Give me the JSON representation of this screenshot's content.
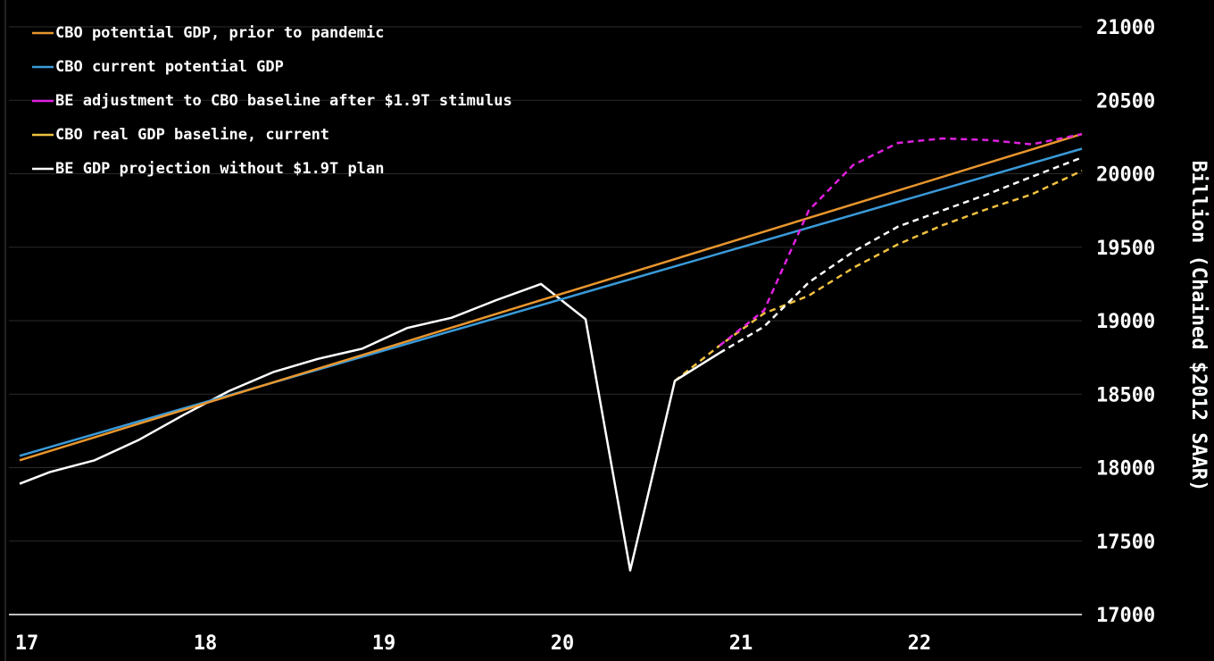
{
  "chart_data": {
    "type": "line",
    "title": "",
    "xlabel": "",
    "ylabel": "Billion (Chained $2012 SAAR)",
    "xlim": [
      2017.0,
      2022.95
    ],
    "ylim": [
      17000,
      21000
    ],
    "x_ticks": [
      {
        "value": 2017,
        "label": "17"
      },
      {
        "value": 2018,
        "label": "18"
      },
      {
        "value": 2019,
        "label": "19"
      },
      {
        "value": 2020,
        "label": "20"
      },
      {
        "value": 2021,
        "label": "21"
      },
      {
        "value": 2022,
        "label": "22"
      }
    ],
    "y_ticks": [
      17000,
      17500,
      18000,
      18500,
      19000,
      19500,
      20000,
      20500,
      21000
    ],
    "grid": "horizontal",
    "legend_position": "top-left",
    "series": [
      {
        "name": "CBO potential GDP, prior to pandemic",
        "color": "#e8962e",
        "dashed": false,
        "points": [
          [
            2017.0,
            18050
          ],
          [
            2022.95,
            20270
          ]
        ]
      },
      {
        "name": "CBO current potential GDP",
        "color": "#3a9ad9",
        "dashed": false,
        "points": [
          [
            2017.0,
            18080
          ],
          [
            2022.95,
            20170
          ]
        ]
      },
      {
        "name": "BE adjustment to CBO baseline after $1.9T stimulus",
        "color": "#e020e0",
        "dashed": true,
        "points": [
          [
            2020.92,
            18830
          ],
          [
            2021.17,
            19070
          ],
          [
            2021.42,
            19750
          ],
          [
            2021.67,
            20060
          ],
          [
            2021.92,
            20210
          ],
          [
            2022.17,
            20240
          ],
          [
            2022.42,
            20230
          ],
          [
            2022.67,
            20200
          ],
          [
            2022.95,
            20270
          ]
        ]
      },
      {
        "name": "CBO real GDP baseline, current",
        "color": "#f0c040",
        "dashed": true,
        "solid_until": 2020.67,
        "points": [
          [
            2020.67,
            18590
          ],
          [
            2020.92,
            18830
          ],
          [
            2021.17,
            19050
          ],
          [
            2021.42,
            19170
          ],
          [
            2021.67,
            19360
          ],
          [
            2021.92,
            19520
          ],
          [
            2022.17,
            19650
          ],
          [
            2022.42,
            19760
          ],
          [
            2022.67,
            19860
          ],
          [
            2022.95,
            20020
          ]
        ]
      },
      {
        "name": "BE GDP projection without $1.9T plan",
        "color": "#ffffff",
        "dashed": false,
        "dashed_from": 2020.92,
        "points": [
          [
            2017.0,
            17890
          ],
          [
            2017.17,
            17970
          ],
          [
            2017.42,
            18050
          ],
          [
            2017.67,
            18190
          ],
          [
            2017.92,
            18360
          ],
          [
            2018.17,
            18520
          ],
          [
            2018.42,
            18650
          ],
          [
            2018.67,
            18740
          ],
          [
            2018.92,
            18810
          ],
          [
            2019.17,
            18950
          ],
          [
            2019.42,
            19020
          ],
          [
            2019.67,
            19140
          ],
          [
            2019.92,
            19250
          ],
          [
            2020.17,
            19010
          ],
          [
            2020.42,
            17300
          ],
          [
            2020.67,
            18590
          ],
          [
            2020.92,
            18780
          ],
          [
            2021.17,
            18960
          ],
          [
            2021.42,
            19260
          ],
          [
            2021.67,
            19470
          ],
          [
            2021.92,
            19640
          ],
          [
            2022.17,
            19750
          ],
          [
            2022.42,
            19860
          ],
          [
            2022.67,
            19980
          ],
          [
            2022.95,
            20110
          ]
        ]
      }
    ]
  }
}
